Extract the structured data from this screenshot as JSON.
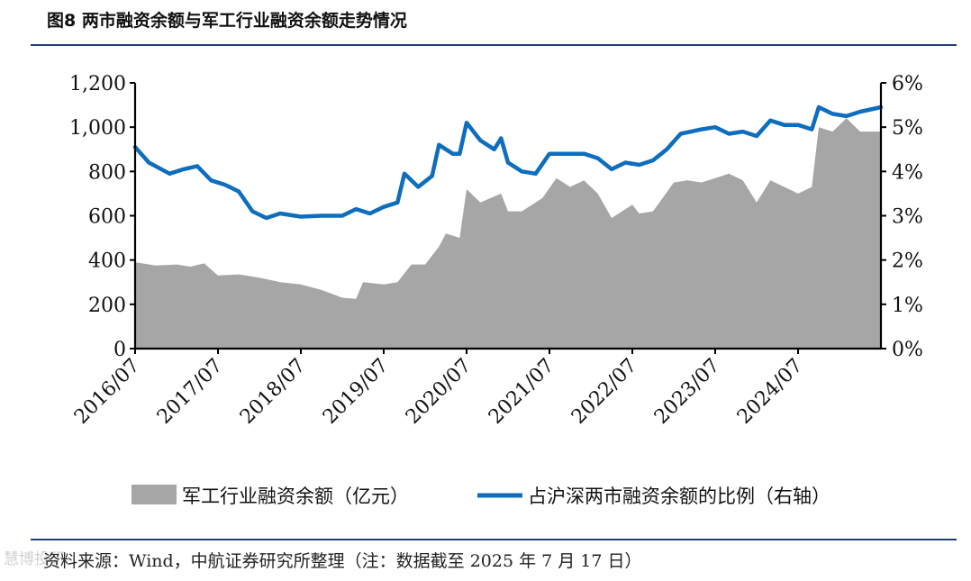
{
  "title": "图8  两市融资余额与军工行业融资余额走势情况",
  "source": "资料来源：Wind，中航证券研究所整理（注：数据截至 2025 年 7 月 17 日）",
  "watermark": "慧博投研",
  "colors": {
    "area": "#a6a6a6",
    "line": "#0d6ebd",
    "rule": "#1f3f7a"
  },
  "chart_data": {
    "type": "area+line",
    "x_ticks": [
      "2016/07",
      "2017/07",
      "2018/07",
      "2019/07",
      "2020/07",
      "2021/07",
      "2022/07",
      "2023/07",
      "2024/07"
    ],
    "y_left": {
      "min": 0,
      "max": 1200,
      "ticks": [
        "0",
        "200",
        "400",
        "600",
        "800",
        "1,000",
        "1,200"
      ]
    },
    "y_right": {
      "min": 0,
      "max": 6,
      "ticks": [
        "0%",
        "1%",
        "2%",
        "3%",
        "4%",
        "5%",
        "6%"
      ]
    },
    "x_range": [
      "2016/07",
      "2025/07"
    ],
    "series": [
      {
        "name": "军工行业融资余额（亿元）",
        "kind": "area",
        "axis": "left",
        "points": [
          [
            "2016/07",
            390
          ],
          [
            "2016/10",
            375
          ],
          [
            "2017/01",
            380
          ],
          [
            "2017/03",
            370
          ],
          [
            "2017/05",
            385
          ],
          [
            "2017/07",
            330
          ],
          [
            "2017/10",
            335
          ],
          [
            "2018/01",
            320
          ],
          [
            "2018/04",
            300
          ],
          [
            "2018/07",
            290
          ],
          [
            "2018/10",
            265
          ],
          [
            "2019/01",
            230
          ],
          [
            "2019/03",
            225
          ],
          [
            "2019/04",
            300
          ],
          [
            "2019/07",
            290
          ],
          [
            "2019/09",
            300
          ],
          [
            "2019/11",
            380
          ],
          [
            "2020/01",
            380
          ],
          [
            "2020/03",
            460
          ],
          [
            "2020/04",
            520
          ],
          [
            "2020/06",
            500
          ],
          [
            "2020/07",
            720
          ],
          [
            "2020/09",
            660
          ],
          [
            "2020/12",
            700
          ],
          [
            "2021/01",
            620
          ],
          [
            "2021/03",
            620
          ],
          [
            "2021/06",
            680
          ],
          [
            "2021/08",
            770
          ],
          [
            "2021/10",
            730
          ],
          [
            "2021/12",
            760
          ],
          [
            "2022/02",
            700
          ],
          [
            "2022/04",
            590
          ],
          [
            "2022/07",
            650
          ],
          [
            "2022/08",
            610
          ],
          [
            "2022/10",
            620
          ],
          [
            "2023/01",
            750
          ],
          [
            "2023/03",
            760
          ],
          [
            "2023/05",
            750
          ],
          [
            "2023/07",
            770
          ],
          [
            "2023/09",
            790
          ],
          [
            "2023/11",
            760
          ],
          [
            "2024/01",
            660
          ],
          [
            "2024/03",
            760
          ],
          [
            "2024/05",
            730
          ],
          [
            "2024/07",
            700
          ],
          [
            "2024/09",
            730
          ],
          [
            "2024/10",
            1000
          ],
          [
            "2024/12",
            980
          ],
          [
            "2025/02",
            1040
          ],
          [
            "2025/04",
            980
          ],
          [
            "2025/07",
            980
          ]
        ]
      },
      {
        "name": "占沪深两市融资余额的比例（右轴）",
        "kind": "line",
        "axis": "right",
        "points": [
          [
            "2016/07",
            4.55
          ],
          [
            "2016/09",
            4.2
          ],
          [
            "2016/12",
            3.95
          ],
          [
            "2017/02",
            4.05
          ],
          [
            "2017/04",
            4.12
          ],
          [
            "2017/06",
            3.8
          ],
          [
            "2017/08",
            3.7
          ],
          [
            "2017/10",
            3.55
          ],
          [
            "2017/12",
            3.1
          ],
          [
            "2018/02",
            2.95
          ],
          [
            "2018/04",
            3.05
          ],
          [
            "2018/07",
            2.98
          ],
          [
            "2018/10",
            3.0
          ],
          [
            "2019/01",
            3.0
          ],
          [
            "2019/03",
            3.15
          ],
          [
            "2019/05",
            3.05
          ],
          [
            "2019/07",
            3.2
          ],
          [
            "2019/09",
            3.3
          ],
          [
            "2019/10",
            3.95
          ],
          [
            "2019/12",
            3.65
          ],
          [
            "2020/02",
            3.9
          ],
          [
            "2020/03",
            4.6
          ],
          [
            "2020/05",
            4.4
          ],
          [
            "2020/06",
            4.4
          ],
          [
            "2020/07",
            5.1
          ],
          [
            "2020/09",
            4.7
          ],
          [
            "2020/11",
            4.5
          ],
          [
            "2020/12",
            4.75
          ],
          [
            "2021/01",
            4.2
          ],
          [
            "2021/03",
            4.0
          ],
          [
            "2021/05",
            3.95
          ],
          [
            "2021/07",
            4.4
          ],
          [
            "2021/09",
            4.4
          ],
          [
            "2021/12",
            4.4
          ],
          [
            "2022/02",
            4.3
          ],
          [
            "2022/04",
            4.05
          ],
          [
            "2022/06",
            4.2
          ],
          [
            "2022/08",
            4.15
          ],
          [
            "2022/10",
            4.25
          ],
          [
            "2022/12",
            4.5
          ],
          [
            "2023/02",
            4.85
          ],
          [
            "2023/05",
            4.95
          ],
          [
            "2023/07",
            5.0
          ],
          [
            "2023/09",
            4.85
          ],
          [
            "2023/11",
            4.9
          ],
          [
            "2024/01",
            4.8
          ],
          [
            "2024/03",
            5.15
          ],
          [
            "2024/05",
            5.05
          ],
          [
            "2024/07",
            5.05
          ],
          [
            "2024/09",
            4.95
          ],
          [
            "2024/10",
            5.45
          ],
          [
            "2024/12",
            5.3
          ],
          [
            "2025/02",
            5.25
          ],
          [
            "2025/04",
            5.35
          ],
          [
            "2025/07",
            5.45
          ]
        ]
      }
    ],
    "legend_position": "bottom",
    "grid": false
  }
}
